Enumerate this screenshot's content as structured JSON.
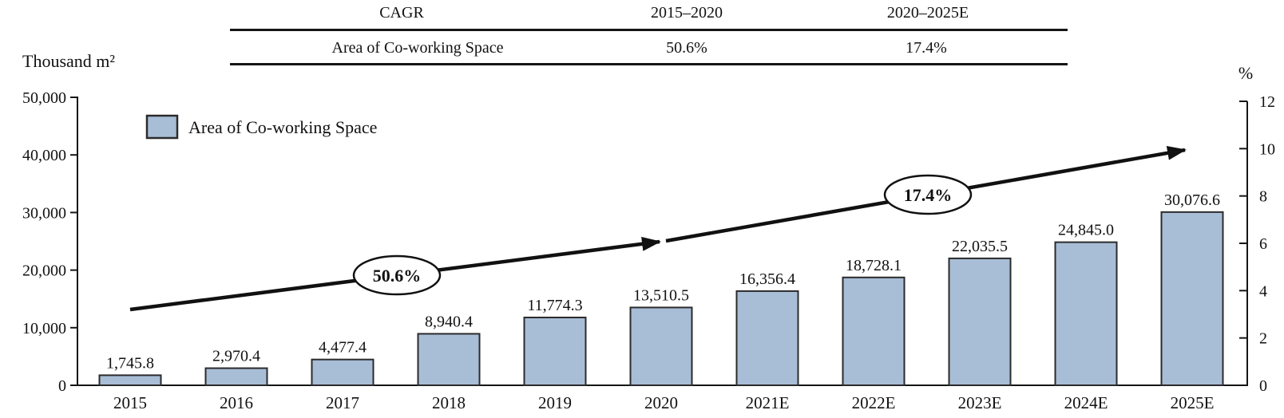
{
  "cagr_table": {
    "header": {
      "col1": "CAGR",
      "col2": "2015–2020",
      "col3": "2020–2025E"
    },
    "row": {
      "label": "Area of Co-working Space",
      "val1": "50.6%",
      "val2": "17.4%"
    }
  },
  "axes": {
    "left_title": "Thousand m²",
    "right_title": "%",
    "left_ticks": [
      "50,000",
      "40,000",
      "30,000",
      "20,000",
      "10,000",
      "0"
    ],
    "right_ticks": [
      "12",
      "10",
      "8",
      "6",
      "4",
      "2",
      "0"
    ]
  },
  "legend": {
    "label": "Area of Co-working Space"
  },
  "colors": {
    "bar_fill": "#a8bdd6",
    "bar_border": "#2b2b2b",
    "axis": "#151515",
    "arrow": "#111111"
  },
  "chart_data": {
    "type": "bar",
    "categories": [
      "2015",
      "2016",
      "2017",
      "2018",
      "2019",
      "2020",
      "2021E",
      "2022E",
      "2023E",
      "2024E",
      "2025E"
    ],
    "values": [
      1745.8,
      2970.4,
      4477.4,
      8940.4,
      11774.3,
      13510.5,
      16356.4,
      18728.1,
      22035.5,
      24845.0,
      30076.6
    ],
    "value_labels": [
      "1,745.8",
      "2,970.4",
      "4,477.4",
      "8,940.4",
      "11,774.3",
      "13,510.5",
      "16,356.4",
      "18,728.1",
      "22,035.5",
      "24,845.0",
      "30,076.6"
    ],
    "series_name": "Area of Co-working Space",
    "ylabel_left": "Thousand m²",
    "ylabel_right": "%",
    "ylim_left": [
      0,
      50000
    ],
    "ylim_right": [
      0,
      12
    ],
    "grid": false,
    "legend_position": "top-left",
    "cagr_annotations": [
      {
        "text": "50.6%",
        "period": "2015–2020"
      },
      {
        "text": "17.4%",
        "period": "2020–2025E"
      }
    ]
  }
}
